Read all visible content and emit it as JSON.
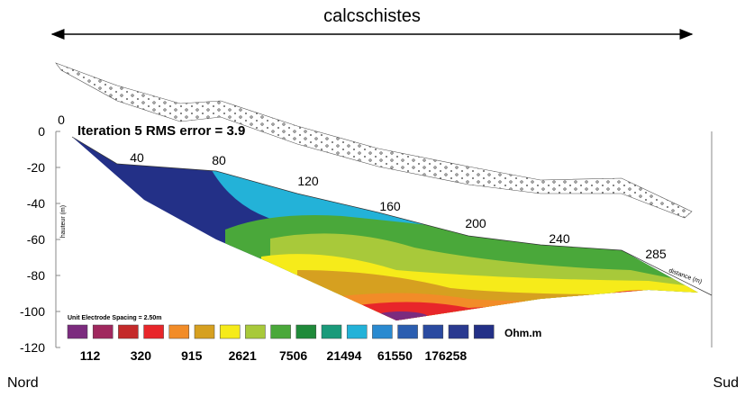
{
  "title": "calcschistes",
  "iteration": "Iteration 5 RMS error = 3.9",
  "y_axis": {
    "label": "hauteur (m)",
    "ticks": [
      "0",
      "-20",
      "-40",
      "-60",
      "-80",
      "-100",
      "-120"
    ]
  },
  "distance": {
    "label": "distance (m)",
    "ticks": [
      "0",
      "40",
      "80",
      "120",
      "160",
      "200",
      "240",
      "285"
    ]
  },
  "legend": {
    "note": "Unit Electrode Spacing = 2.50m",
    "unit": "Ohm.m",
    "labels": [
      "112",
      "320",
      "915",
      "2621",
      "7506",
      "21494",
      "61550",
      "176258"
    ]
  },
  "left": "Nord",
  "right": "Sud"
}
